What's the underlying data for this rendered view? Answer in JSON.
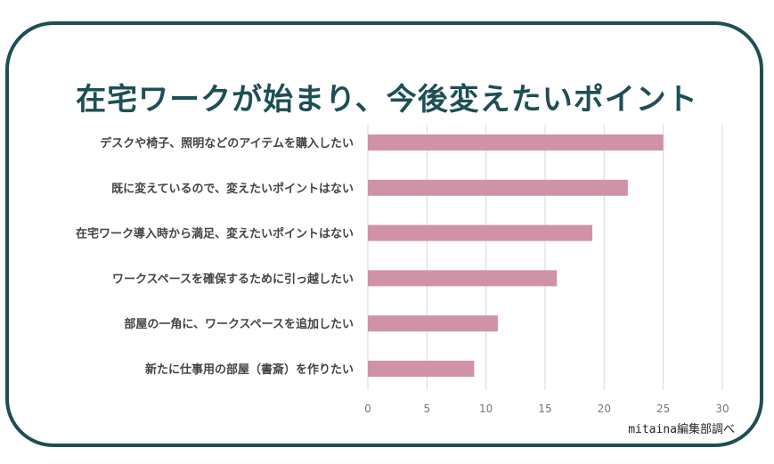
{
  "chart_data": {
    "type": "bar",
    "orientation": "horizontal",
    "title": "在宅ワークが始まり、今後変えたいポイント",
    "categories": [
      "デスクや椅子、照明などのアイテムを購入したい",
      "既に変えているので、変えたいポイントはない",
      "在宅ワーク導入時から満足、変えたいポイントはない",
      "ワークスペースを確保するために引っ越したい",
      "部屋の一角に、ワークスペースを追加したい",
      "新たに仕事用の部屋（書斎）を作りたい"
    ],
    "values": [
      25,
      22,
      19,
      16,
      11,
      9
    ],
    "xlim": [
      0,
      30
    ],
    "xticks": [
      0,
      5,
      10,
      15,
      20,
      25,
      30
    ],
    "grid": true,
    "xlabel": "",
    "ylabel": "",
    "bar_color": "#d092a6",
    "source": "mitaina編集部調べ"
  },
  "colors": {
    "frame": "#1d4f55",
    "title": "#1d4f55",
    "grid": "#d9d9d9"
  }
}
